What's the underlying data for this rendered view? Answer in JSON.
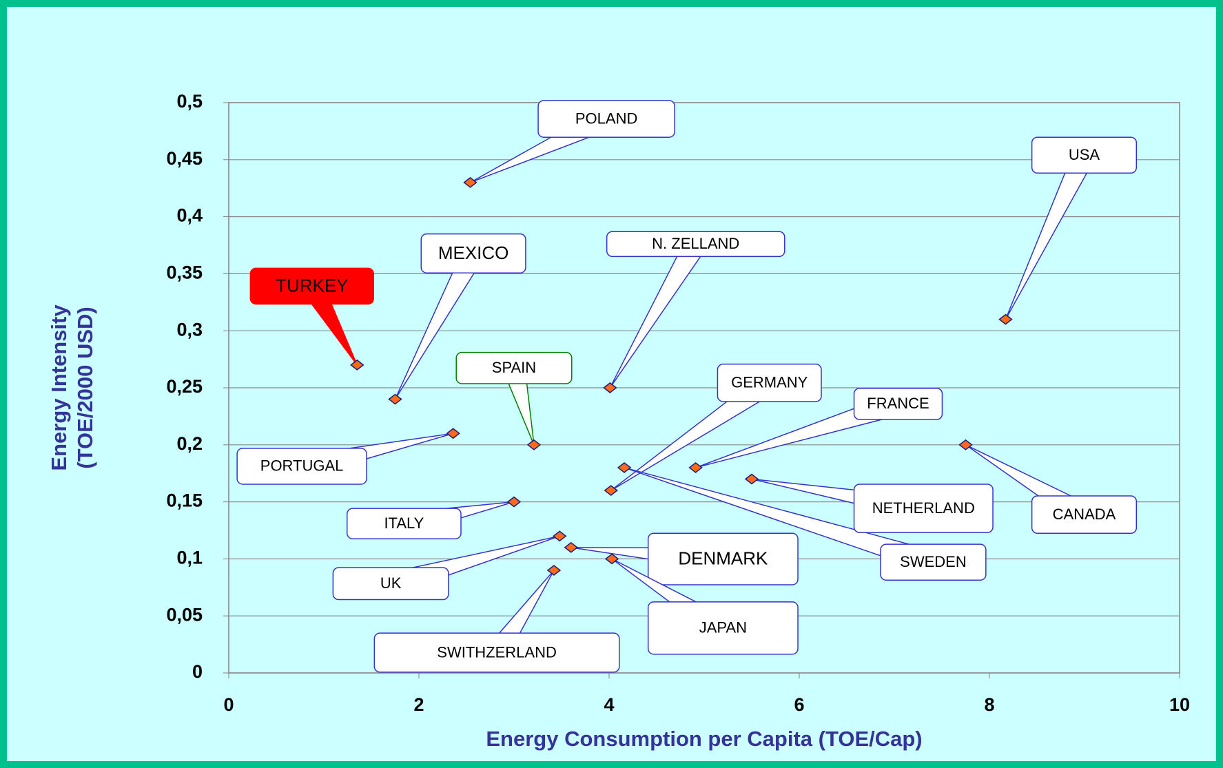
{
  "chart_data": {
    "type": "scatter",
    "xlabel": "Energy Consumption per Capita (TOE/Cap)",
    "ylabel": [
      "Energy Intensity",
      "(TOE/2000 USD)"
    ],
    "labels": [
      "TURKEY",
      "MEXICO",
      "PORTUGAL",
      "SPAIN",
      "POLAND",
      "N. ZELLAND",
      "USA",
      "GERMANY",
      "SWEDEN",
      "FRANCE",
      "NETHERLAND",
      "CANADA",
      "ITALY",
      "UK",
      "DENMARK",
      "JAPAN",
      "SWITHZERLAND"
    ],
    "x": [
      1.35,
      1.75,
      2.36,
      3.21,
      2.54,
      4.01,
      8.17,
      4.02,
      4.16,
      4.91,
      5.5,
      7.75,
      3.0,
      3.48,
      3.6,
      4.03,
      3.42
    ],
    "values": [
      0.27,
      0.24,
      0.21,
      0.2,
      0.43,
      0.25,
      0.31,
      0.16,
      0.18,
      0.18,
      0.17,
      0.2,
      0.15,
      0.12,
      0.11,
      0.1,
      0.09
    ],
    "color": "#ff6a1a",
    "xlim": [
      0,
      10
    ],
    "xticks": [
      0,
      2,
      4,
      6,
      8,
      10
    ],
    "ylim": [
      0,
      0.5
    ],
    "yticks": [
      0,
      {
        "value": 0.05,
        "label": "0,05"
      },
      {
        "value": 0.1,
        "label": "0,1"
      },
      {
        "value": 0.15,
        "label": "0,15"
      },
      {
        "value": 0.2,
        "label": "0,2"
      },
      {
        "value": 0.25,
        "label": "0,25"
      },
      {
        "value": 0.3,
        "label": "0,3"
      },
      {
        "value": 0.35,
        "label": "0,35"
      },
      {
        "value": 0.4,
        "label": "0,4"
      },
      {
        "value": 0.45,
        "label": "0,45"
      },
      {
        "value": 0.5,
        "label": "0,5"
      }
    ],
    "grid": true
  }
}
